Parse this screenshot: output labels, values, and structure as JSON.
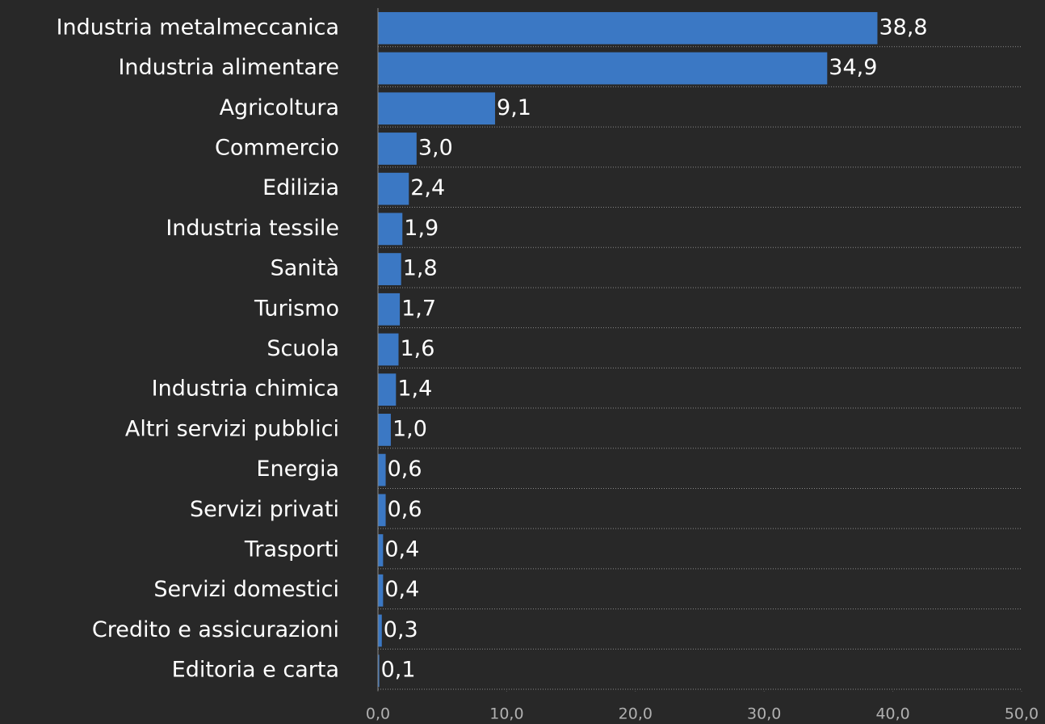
{
  "chart_data": {
    "type": "barh",
    "categories": [
      "Industria metalmeccanica",
      "Industria alimentare",
      "Agricoltura",
      "Commercio",
      "Edilizia",
      "Industria tessile",
      "Sanità",
      "Turismo",
      "Scuola",
      "Industria chimica",
      "Altri servizi pubblici",
      "Energia ",
      "Servizi privati",
      "Trasporti ",
      "Servizi domestici",
      "Credito e assicurazioni",
      "Editoria e carta"
    ],
    "values": [
      38.8,
      34.9,
      9.1,
      3.0,
      2.4,
      1.9,
      1.8,
      1.7,
      1.6,
      1.4,
      1.0,
      0.6,
      0.6,
      0.4,
      0.4,
      0.3,
      0.1
    ],
    "value_labels": [
      "38,8",
      "34,9",
      "9,1",
      "3,0",
      "2,4",
      "1,9",
      "1,8",
      "1,7",
      "1,6",
      "1,4",
      "1,0",
      "0,6",
      "0,6",
      "0,4",
      "0,4",
      "0,3",
      "0,1"
    ],
    "color": "#3b78c4",
    "xlim": [
      0,
      50
    ],
    "xticks": [
      {
        "value": 0,
        "label": "0,0"
      },
      {
        "value": 10,
        "label": "10,0"
      },
      {
        "value": 20,
        "label": "20,0"
      },
      {
        "value": 30,
        "label": "30,0"
      },
      {
        "value": 40,
        "label": "40,0"
      },
      {
        "value": 50,
        "label": "50,0"
      }
    ]
  }
}
